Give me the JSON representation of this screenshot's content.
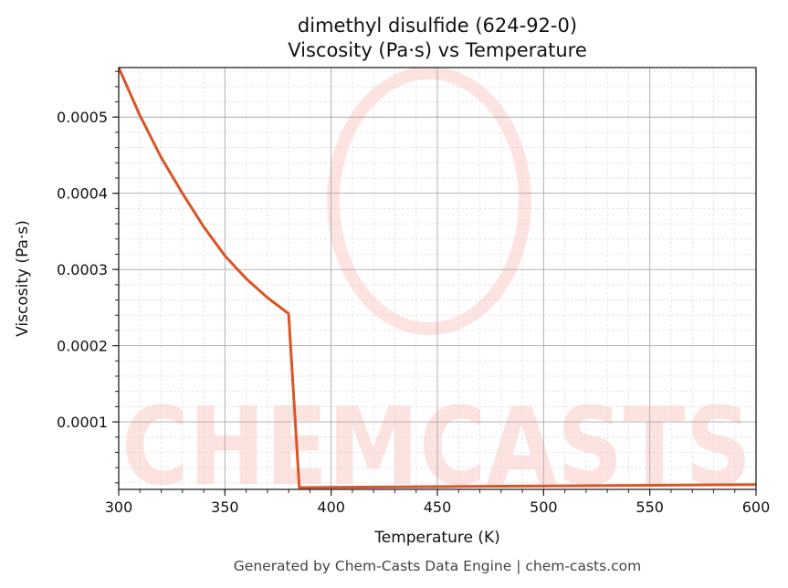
{
  "chart_data": {
    "type": "line",
    "title": "dimethyl disulfide (624-92-0)",
    "subtitle": "Viscosity (Pa·s) vs Temperature",
    "xlabel": "Temperature (K)",
    "ylabel": "Viscosity (Pa·s)",
    "xlim": [
      300,
      600
    ],
    "ylim": [
      1.14e-05,
      0.000565
    ],
    "xticks": [
      300,
      350,
      400,
      450,
      500,
      550,
      600
    ],
    "yticks": [
      0.0001,
      0.0002,
      0.0003,
      0.0004,
      0.0005
    ],
    "ytick_labels": [
      "0.0001",
      "0.0002",
      "0.0003",
      "0.0004",
      "0.0005"
    ],
    "grid": true,
    "color": "#d95525",
    "series": [
      {
        "x": [
          300,
          310,
          320,
          330,
          340,
          350,
          360,
          370,
          380,
          385,
          400,
          450,
          500,
          550,
          600
        ],
        "y": [
          0.000565,
          0.000502,
          0.000447,
          0.0004,
          0.000356,
          0.000318,
          0.000288,
          0.000263,
          0.000242,
          1.38e-05,
          1.42e-05,
          1.5e-05,
          1.6e-05,
          1.68e-05,
          1.77e-05
        ]
      }
    ]
  },
  "watermark": "CHEMCASTS",
  "footer": "Generated by Chem-Casts Data Engine | chem-casts.com"
}
